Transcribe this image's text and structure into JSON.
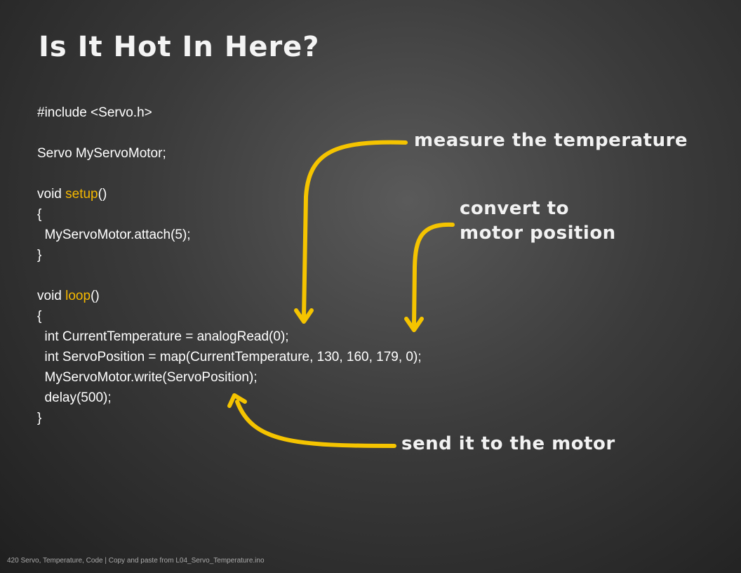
{
  "title": "Is It Hot In Here?",
  "code": {
    "blocks": [
      [
        [
          {
            "text": "#include <Servo.h>"
          }
        ]
      ],
      [
        [
          {
            "text": "Servo MyServoMotor;"
          }
        ]
      ],
      [
        [
          {
            "text": "void "
          },
          {
            "text": "setup",
            "color": "#f5b800"
          },
          {
            "text": "()"
          }
        ],
        [
          {
            "text": "{"
          }
        ],
        [
          {
            "text": "  MyServoMotor.attach(5);"
          }
        ],
        [
          {
            "text": "}"
          }
        ]
      ],
      [
        [
          {
            "text": "void "
          },
          {
            "text": "loop",
            "color": "#f5b800"
          },
          {
            "text": "()"
          }
        ],
        [
          {
            "text": "{"
          }
        ],
        [
          {
            "text": "  int CurrentTemperature = analogRead(0);"
          }
        ],
        [
          {
            "text": "  int ServoPosition = map(CurrentTemperature, 130, 160, 179, 0);"
          }
        ],
        [
          {
            "text": "  MyServoMotor.write(ServoPosition);"
          }
        ],
        [
          {
            "text": "  delay(500);"
          }
        ],
        [
          {
            "text": "}"
          }
        ]
      ]
    ]
  },
  "annotations": [
    {
      "lines": [
        "measure the temperature"
      ]
    },
    {
      "lines": [
        "convert to",
        "motor position"
      ]
    },
    {
      "lines": [
        "send it to the motor"
      ]
    }
  ],
  "footer": "420 Servo, Temperature, Code | Copy and paste from L04_Servo_Temperature.ino"
}
